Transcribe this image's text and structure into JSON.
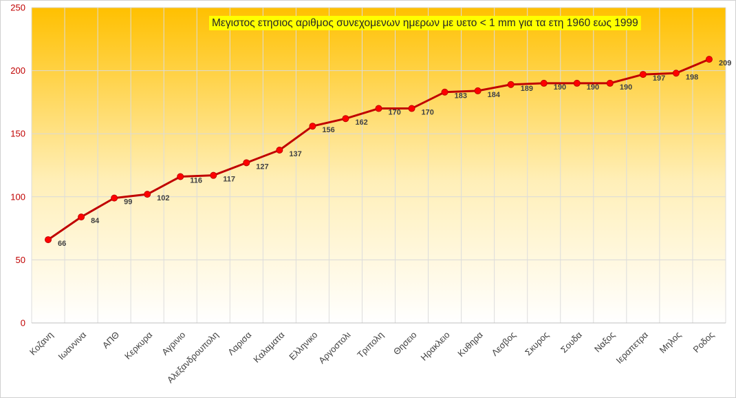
{
  "chart_data": {
    "type": "line",
    "title": "Μεγιστος ετησιος αριθμος συνεχομενων ημερων με υετο < 1 mm για τα ετη 1960 εως 1999",
    "xlabel": "",
    "ylabel": "",
    "ylim": [
      0,
      250
    ],
    "yticks": [
      "0",
      "50",
      "100",
      "150",
      "200",
      "250"
    ],
    "grid": true,
    "legend": "none",
    "categories": [
      "Κοζανη",
      "Ιωαννινα",
      "ΑΠΘ",
      "Κερκυρα",
      "Αγρινιο",
      "Αλεξανδρουπολη",
      "Λαρισα",
      "Καλαματα",
      "Ελληνικο",
      "Αργοστολι",
      "Τριπολη",
      "Θησειο",
      "Ηρακλειο",
      "Κυθηρα",
      "Λεσβος",
      "Σκυρος",
      "Σουδα",
      "Ναξος",
      "Ιεραπετρα",
      "Μηλος",
      "Ροδος"
    ],
    "series": [
      {
        "values": [
          66,
          84,
          99,
          102,
          116,
          117,
          127,
          137,
          156,
          162,
          170,
          170,
          183,
          184,
          189,
          190,
          190,
          190,
          197,
          198,
          209
        ]
      }
    ],
    "data_labels": [
      "66",
      "84",
      "99",
      "102",
      "116",
      "117",
      "127",
      "137",
      "156",
      "162",
      "170",
      "170",
      "183",
      "184",
      "189",
      "190",
      "190",
      "190",
      "197",
      "198",
      "209"
    ],
    "colors": {
      "line": "#c00000",
      "marker": "#ff0000",
      "background_top": "#ffc000",
      "background_bottom": "#ffffff",
      "title_box": "#ffff00",
      "axis_ticks": "#c00000"
    }
  }
}
